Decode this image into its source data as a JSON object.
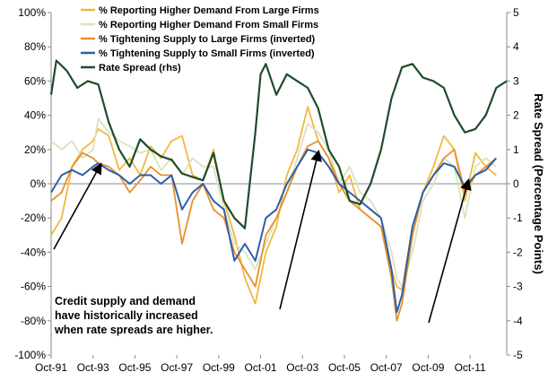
{
  "chart_data": {
    "type": "line",
    "title": "",
    "xlabel": "",
    "ylabel_left": "",
    "ylabel_right": "Rate Spread (Percentage Points)",
    "y_left_ticks": [
      "100%",
      "80%",
      "60%",
      "40%",
      "20%",
      "0%",
      "-20%",
      "-40%",
      "-60%",
      "-80%",
      "-100%"
    ],
    "y_right_ticks": [
      "5",
      "4",
      "3",
      "2",
      "1",
      "0",
      "-1",
      "-2",
      "-3",
      "-4",
      "-5"
    ],
    "x_ticks": [
      "Oct-91",
      "Oct-93",
      "Oct-95",
      "Oct-97",
      "Oct-99",
      "Oct-01",
      "Oct-03",
      "Oct-05",
      "Oct-07",
      "Oct-09",
      "Oct-11"
    ],
    "ylim_left": [
      -100,
      100
    ],
    "ylim_right": [
      -5,
      5
    ],
    "xlim": [
      1991.75,
      2013.5
    ],
    "legend_position": "top-left",
    "grid": false,
    "annotation": [
      "Credit supply and demand",
      "have historically increased",
      "when rate spreads are higher."
    ],
    "series": [
      {
        "name": "% Reporting Higher Demand From Large Firms",
        "color": "#F0B840",
        "axis": "left",
        "x": [
          1991.75,
          1992.25,
          1992.75,
          1993.25,
          1993.75,
          1994.0,
          1994.5,
          1995.0,
          1995.5,
          1996.0,
          1996.5,
          1997.0,
          1997.5,
          1998.0,
          1998.5,
          1999.0,
          1999.5,
          2000.0,
          2000.5,
          2001.0,
          2001.5,
          2002.0,
          2002.5,
          2003.0,
          2003.5,
          2004.0,
          2004.5,
          2005.0,
          2005.5,
          2006.0,
          2006.5,
          2007.0,
          2007.5,
          2008.0,
          2008.25,
          2008.5,
          2009.0,
          2009.5,
          2010.0,
          2010.5,
          2011.0,
          2011.5,
          2012.0,
          2012.5,
          2013.0
        ],
        "values": [
          -30,
          -20,
          10,
          20,
          25,
          32,
          28,
          8,
          15,
          5,
          22,
          15,
          25,
          28,
          5,
          2,
          20,
          -10,
          -30,
          -55,
          -70,
          -40,
          -25,
          5,
          20,
          45,
          25,
          15,
          -5,
          5,
          -15,
          -20,
          -25,
          -50,
          -60,
          -62,
          -25,
          -5,
          10,
          28,
          20,
          -10,
          18,
          10,
          5
        ]
      },
      {
        "name": "% Reporting Higher Demand From Small Firms",
        "color": "#D8E4BC",
        "axis": "left",
        "x": [
          1991.75,
          1992.25,
          1992.75,
          1993.25,
          1993.75,
          1994.0,
          1994.5,
          1995.0,
          1995.5,
          1996.0,
          1996.5,
          1997.0,
          1997.5,
          1998.0,
          1998.5,
          1999.0,
          1999.5,
          2000.0,
          2000.5,
          2001.0,
          2001.5,
          2002.0,
          2002.5,
          2003.0,
          2003.5,
          2004.0,
          2004.5,
          2005.0,
          2005.5,
          2006.0,
          2006.5,
          2007.0,
          2007.5,
          2008.0,
          2008.25,
          2008.5,
          2009.0,
          2009.5,
          2010.0,
          2010.5,
          2011.0,
          2011.5,
          2012.0,
          2012.5,
          2013.0
        ],
        "values": [
          25,
          20,
          25,
          15,
          20,
          38,
          30,
          25,
          22,
          18,
          20,
          8,
          15,
          5,
          15,
          10,
          10,
          -15,
          -35,
          -40,
          -50,
          -35,
          -20,
          -5,
          15,
          35,
          30,
          20,
          0,
          10,
          -5,
          -10,
          -20,
          -40,
          -55,
          -60,
          -40,
          -10,
          0,
          15,
          10,
          -20,
          10,
          15,
          10
        ]
      },
      {
        "name": "% Tightening Supply to Large Firms (inverted)",
        "color": "#E8902C",
        "axis": "left",
        "x": [
          1991.75,
          1992.25,
          1992.75,
          1993.25,
          1993.75,
          1994.0,
          1994.5,
          1995.0,
          1995.5,
          1996.0,
          1996.5,
          1997.0,
          1997.5,
          1998.0,
          1998.5,
          1999.0,
          1999.5,
          2000.0,
          2000.5,
          2001.0,
          2001.5,
          2002.0,
          2002.5,
          2003.0,
          2003.5,
          2004.0,
          2004.5,
          2005.0,
          2005.5,
          2006.0,
          2006.5,
          2007.0,
          2007.5,
          2008.0,
          2008.25,
          2008.5,
          2009.0,
          2009.5,
          2010.0,
          2010.5,
          2011.0,
          2011.5,
          2012.0,
          2012.5,
          2013.0
        ],
        "values": [
          -10,
          -5,
          10,
          18,
          15,
          12,
          10,
          5,
          -5,
          2,
          10,
          5,
          5,
          -35,
          -10,
          0,
          -15,
          -20,
          -40,
          -50,
          -60,
          -30,
          -20,
          -5,
          10,
          22,
          25,
          15,
          0,
          -10,
          -15,
          -20,
          -25,
          -55,
          -80,
          -70,
          -30,
          -5,
          5,
          15,
          20,
          -5,
          5,
          10,
          15
        ]
      },
      {
        "name": "% Tightening Supply to Small Firms (inverted)",
        "color": "#2E5FA8",
        "axis": "left",
        "x": [
          1991.75,
          1992.25,
          1992.75,
          1993.25,
          1993.75,
          1994.0,
          1994.5,
          1995.0,
          1995.5,
          1996.0,
          1996.5,
          1997.0,
          1997.5,
          1998.0,
          1998.5,
          1999.0,
          1999.5,
          2000.0,
          2000.5,
          2001.0,
          2001.5,
          2002.0,
          2002.5,
          2003.0,
          2003.5,
          2004.0,
          2004.5,
          2005.0,
          2005.5,
          2006.0,
          2006.5,
          2007.0,
          2007.5,
          2008.0,
          2008.25,
          2008.5,
          2009.0,
          2009.5,
          2010.0,
          2010.5,
          2011.0,
          2011.5,
          2012.0,
          2012.5,
          2013.0
        ],
        "values": [
          -5,
          5,
          8,
          5,
          10,
          12,
          8,
          5,
          0,
          5,
          5,
          0,
          5,
          -15,
          -5,
          0,
          -10,
          -15,
          -45,
          -35,
          -45,
          -20,
          -15,
          0,
          10,
          20,
          18,
          10,
          0,
          -5,
          -10,
          -15,
          -20,
          -50,
          -75,
          -65,
          -25,
          -5,
          5,
          12,
          10,
          -2,
          5,
          8,
          15
        ]
      },
      {
        "name": "Rate Spread (rhs)",
        "color": "#1E4D2B",
        "axis": "right",
        "x": [
          1991.75,
          1992.0,
          1992.5,
          1993.0,
          1993.5,
          1994.0,
          1994.5,
          1995.0,
          1995.5,
          1996.0,
          1996.5,
          1997.0,
          1997.5,
          1998.0,
          1998.5,
          1999.0,
          1999.5,
          2000.0,
          2000.5,
          2001.0,
          2001.5,
          2001.75,
          2002.0,
          2002.5,
          2003.0,
          2003.5,
          2004.0,
          2004.5,
          2005.0,
          2005.5,
          2006.0,
          2006.5,
          2007.0,
          2007.5,
          2008.0,
          2008.5,
          2009.0,
          2009.5,
          2010.0,
          2010.5,
          2011.0,
          2011.5,
          2012.0,
          2012.5,
          2013.0,
          2013.5
        ],
        "values": [
          2.6,
          3.6,
          3.3,
          2.8,
          3.0,
          2.9,
          1.8,
          1.0,
          0.5,
          1.3,
          1.0,
          0.8,
          0.7,
          0.3,
          0.2,
          0.1,
          0.9,
          -0.5,
          -1.0,
          -1.3,
          1.5,
          3.2,
          3.5,
          2.6,
          3.2,
          3.0,
          2.8,
          2.2,
          1.0,
          0.5,
          -0.5,
          -0.6,
          0.0,
          1.0,
          2.5,
          3.4,
          3.5,
          3.1,
          3.0,
          2.8,
          2.0,
          1.5,
          1.6,
          2.0,
          2.8,
          3.0
        ]
      }
    ]
  }
}
